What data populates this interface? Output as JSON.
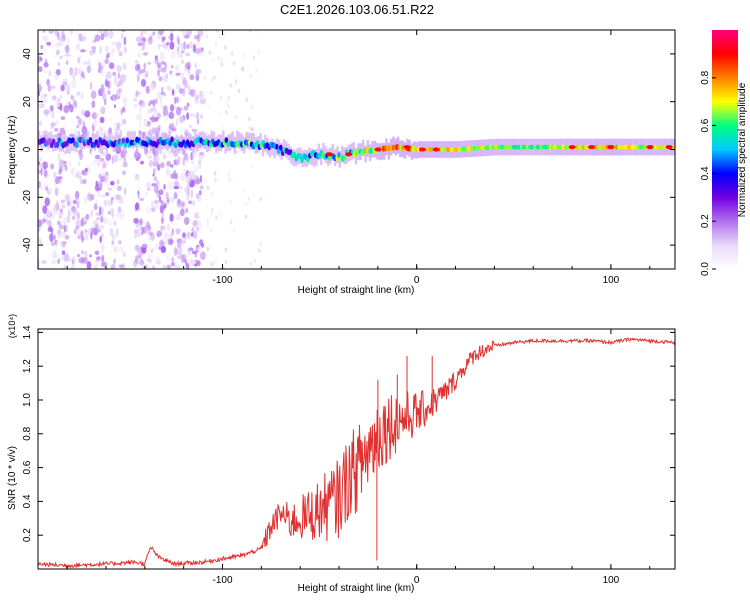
{
  "figure_title": "C2E1.2026.103.06.51.R22",
  "colors": {
    "signal_line": "#e03030",
    "axis": "#000000",
    "colormap": [
      "#ffffff",
      "#e8d8f8",
      "#b070f0",
      "#7000e0",
      "#0000ff",
      "#00c8ff",
      "#00ff80",
      "#ffff00",
      "#ff8000",
      "#ff0000",
      "#ff0080"
    ]
  },
  "chart_data": [
    {
      "type": "heatmap",
      "title": "C2E1.2026.103.06.51.R22",
      "xlabel": "Height of straight line (km)",
      "ylabel": "Frequency (Hz)",
      "xlim": [
        -195,
        133
      ],
      "ylim": [
        -50,
        50
      ],
      "x_ticks": [
        -100,
        0,
        100
      ],
      "x_tick_labels": [
        "-100",
        "0",
        "100"
      ],
      "y_ticks": [
        -40,
        -20,
        0,
        20,
        40
      ],
      "y_tick_labels": [
        "-40",
        "-20",
        "0",
        "20",
        "40"
      ],
      "colorbar": {
        "label": "Normalized spectral amplitude",
        "range": [
          0,
          1
        ],
        "ticks": [
          0.0,
          0.2,
          0.4,
          0.6,
          0.8
        ],
        "tick_labels": [
          "0.0",
          "0.2",
          "0.4",
          "0.6",
          "0.8"
        ]
      },
      "ridge": {
        "x": [
          -195,
          -180,
          -160,
          -140,
          -120,
          -100,
          -90,
          -80,
          -70,
          -60,
          -50,
          -40,
          -30,
          -20,
          -10,
          0,
          20,
          40,
          60,
          80,
          100,
          120,
          133
        ],
        "freq_hz": [
          3,
          3,
          3,
          3,
          3,
          3,
          3,
          2,
          0,
          -4,
          -2,
          -3,
          -1,
          0,
          1,
          0,
          0,
          1,
          1,
          1,
          1,
          1,
          1
        ],
        "amplitude": [
          0.35,
          0.4,
          0.35,
          0.45,
          0.4,
          0.5,
          0.55,
          0.5,
          0.45,
          0.45,
          0.5,
          0.55,
          0.6,
          0.7,
          0.8,
          0.75,
          0.7,
          0.65,
          0.6,
          0.7,
          0.75,
          0.65,
          0.7
        ]
      },
      "noise_bands_km": [
        [
          -195,
          -150
        ],
        [
          -145,
          -110
        ]
      ]
    },
    {
      "type": "line",
      "xlabel": "Height of straight line (km)",
      "ylabel": "SNR (10 * v/v)",
      "y_scale_label": "(x10⁴)",
      "xlim": [
        -195,
        133
      ],
      "ylim": [
        0,
        1.42
      ],
      "x_ticks": [
        -100,
        0,
        100
      ],
      "x_tick_labels": [
        "-100",
        "0",
        "100"
      ],
      "y_ticks": [
        0.2,
        0.4,
        0.6,
        0.8,
        1.0,
        1.2,
        1.4
      ],
      "y_tick_labels": [
        "0.2",
        "0.4",
        "0.6",
        "0.8",
        "1.0",
        "1.2",
        "1.4"
      ],
      "series": [
        {
          "name": "SNR",
          "x": [
            -195,
            -180,
            -160,
            -145,
            -140,
            -137,
            -133,
            -125,
            -110,
            -100,
            -90,
            -80,
            -75,
            -70,
            -65,
            -60,
            -55,
            -50,
            -45,
            -40,
            -35,
            -30,
            -25,
            -20,
            -15,
            -10,
            -5,
            0,
            5,
            10,
            15,
            20,
            25,
            30,
            35,
            40,
            50,
            60,
            70,
            80,
            90,
            100,
            110,
            120,
            133
          ],
          "values": [
            0.03,
            0.02,
            0.03,
            0.04,
            0.03,
            0.13,
            0.07,
            0.03,
            0.04,
            0.06,
            0.08,
            0.12,
            0.25,
            0.33,
            0.28,
            0.3,
            0.32,
            0.35,
            0.38,
            0.42,
            0.55,
            0.6,
            0.7,
            0.8,
            0.85,
            0.88,
            0.9,
            0.92,
            0.95,
            1.0,
            1.05,
            1.12,
            1.2,
            1.27,
            1.3,
            1.32,
            1.34,
            1.35,
            1.35,
            1.35,
            1.35,
            1.34,
            1.36,
            1.35,
            1.34
          ]
        }
      ]
    }
  ]
}
